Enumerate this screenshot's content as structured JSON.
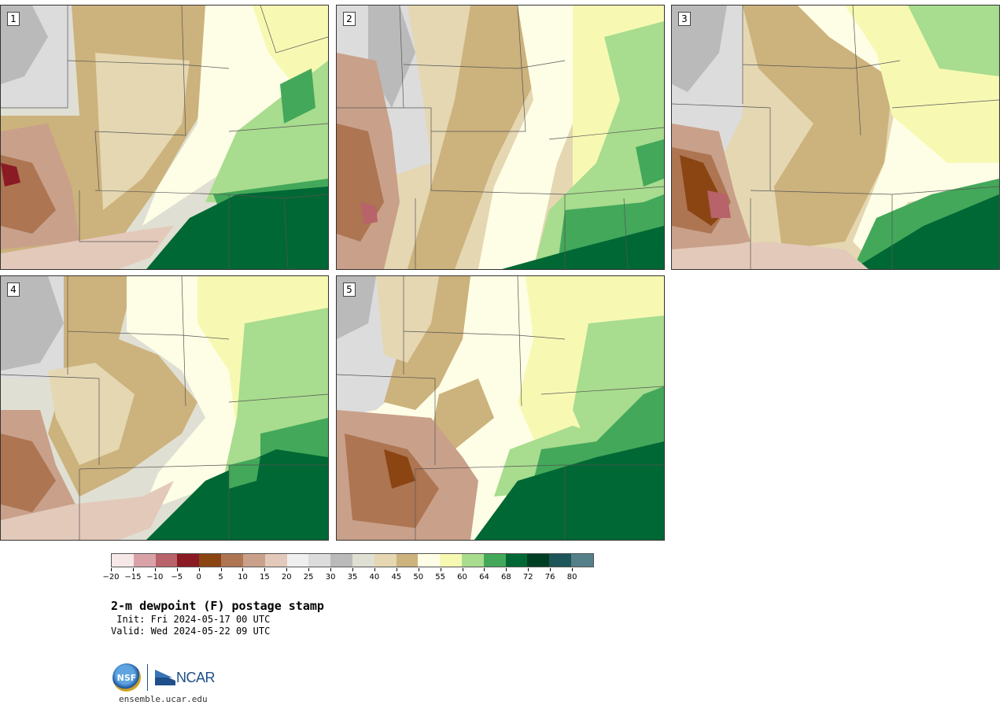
{
  "panels": [
    {
      "label": "1"
    },
    {
      "label": "2"
    },
    {
      "label": "3"
    },
    {
      "label": "4"
    },
    {
      "label": "5"
    }
  ],
  "colorbar": {
    "colors": [
      "#f6e7e8",
      "#d9a2a7",
      "#b8626a",
      "#8a1a24",
      "#8b4513",
      "#ad7551",
      "#c9a08a",
      "#e3c9ba",
      "#efefef",
      "#dcdcdc",
      "#bababa",
      "#e0dfd3",
      "#e4d7b2",
      "#ccb27c",
      "#fefee6",
      "#f7f9b3",
      "#a8dc8e",
      "#43a85a",
      "#006834",
      "#003f24",
      "#1d5558",
      "#55808a"
    ],
    "ticks": [
      "−20",
      "−15",
      "−10",
      "−5",
      "0",
      "5",
      "10",
      "15",
      "20",
      "25",
      "30",
      "35",
      "40",
      "45",
      "50",
      "55",
      "60",
      "64",
      "68",
      "72",
      "76",
      "80"
    ]
  },
  "title": "2-m dewpoint (F) postage stamp",
  "init": " Init: Fri 2024-05-17 00 UTC",
  "valid": "Valid: Wed 2024-05-22 09 UTC",
  "logos": {
    "nsf_text": "NSF",
    "ncar_text": "NCAR"
  },
  "website": "ensemble.ucar.edu"
}
